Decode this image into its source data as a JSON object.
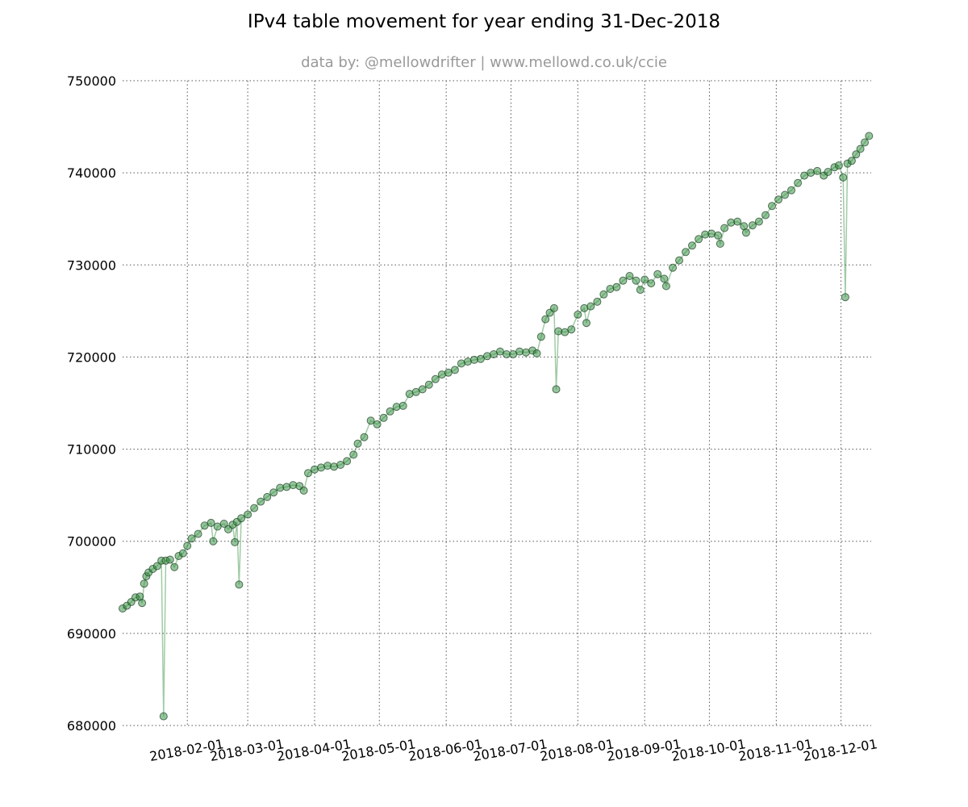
{
  "chart_data": {
    "type": "scatter",
    "title": "IPv4 table movement for year ending 31-Dec-2018",
    "subtitle": "data by: @mellowdrifter | www.mellowd.co.uk/ccie",
    "xlabel": "",
    "ylabel": "",
    "xlim": [
      "2018-01-02",
      "2018-12-15"
    ],
    "ylim": [
      680000,
      750000
    ],
    "x_ticks": [
      "2018-02-01",
      "2018-03-01",
      "2018-04-01",
      "2018-05-01",
      "2018-06-01",
      "2018-07-01",
      "2018-08-01",
      "2018-09-01",
      "2018-10-01",
      "2018-11-01",
      "2018-12-01"
    ],
    "y_ticks": [
      680000,
      690000,
      700000,
      710000,
      720000,
      730000,
      740000,
      750000
    ],
    "y_tick_labels": [
      "680000",
      "690000",
      "700000",
      "710000",
      "720000",
      "730000",
      "740000",
      "750000"
    ],
    "grid": true,
    "marker_color": "#2e8b3a",
    "marker_edge_color": "#1a3d22",
    "line_color": "#2e8b3a",
    "series": [
      {
        "points": [
          [
            "2018-01-02",
            692700
          ],
          [
            "2018-01-04",
            693000
          ],
          [
            "2018-01-06",
            693400
          ],
          [
            "2018-01-08",
            693900
          ],
          [
            "2018-01-10",
            694000
          ],
          [
            "2018-01-11",
            693300
          ],
          [
            "2018-01-12",
            695400
          ],
          [
            "2018-01-13",
            696200
          ],
          [
            "2018-01-14",
            696600
          ],
          [
            "2018-01-16",
            697000
          ],
          [
            "2018-01-18",
            697300
          ],
          [
            "2018-01-20",
            697900
          ],
          [
            "2018-01-21",
            681000
          ],
          [
            "2018-01-22",
            697900
          ],
          [
            "2018-01-24",
            698000
          ],
          [
            "2018-01-26",
            697200
          ],
          [
            "2018-01-28",
            698400
          ],
          [
            "2018-01-30",
            698700
          ],
          [
            "2018-02-01",
            699500
          ],
          [
            "2018-02-03",
            700300
          ],
          [
            "2018-02-06",
            700800
          ],
          [
            "2018-02-09",
            701700
          ],
          [
            "2018-02-12",
            702000
          ],
          [
            "2018-02-13",
            700000
          ],
          [
            "2018-02-15",
            701600
          ],
          [
            "2018-02-18",
            701900
          ],
          [
            "2018-02-20",
            701300
          ],
          [
            "2018-02-22",
            701800
          ],
          [
            "2018-02-23",
            699900
          ],
          [
            "2018-02-24",
            702100
          ],
          [
            "2018-02-25",
            695300
          ],
          [
            "2018-02-26",
            702500
          ],
          [
            "2018-03-01",
            702900
          ],
          [
            "2018-03-04",
            703600
          ],
          [
            "2018-03-07",
            704300
          ],
          [
            "2018-03-10",
            704800
          ],
          [
            "2018-03-13",
            705300
          ],
          [
            "2018-03-16",
            705800
          ],
          [
            "2018-03-19",
            705900
          ],
          [
            "2018-03-22",
            706100
          ],
          [
            "2018-03-25",
            706000
          ],
          [
            "2018-03-27",
            705500
          ],
          [
            "2018-03-29",
            707400
          ],
          [
            "2018-04-01",
            707800
          ],
          [
            "2018-04-04",
            708000
          ],
          [
            "2018-04-07",
            708200
          ],
          [
            "2018-04-10",
            708100
          ],
          [
            "2018-04-13",
            708300
          ],
          [
            "2018-04-16",
            708700
          ],
          [
            "2018-04-19",
            709400
          ],
          [
            "2018-04-21",
            710600
          ],
          [
            "2018-04-24",
            711300
          ],
          [
            "2018-04-27",
            713100
          ],
          [
            "2018-04-30",
            712700
          ],
          [
            "2018-05-03",
            713400
          ],
          [
            "2018-05-06",
            714100
          ],
          [
            "2018-05-09",
            714600
          ],
          [
            "2018-05-12",
            714700
          ],
          [
            "2018-05-15",
            716000
          ],
          [
            "2018-05-18",
            716200
          ],
          [
            "2018-05-21",
            716500
          ],
          [
            "2018-05-24",
            717000
          ],
          [
            "2018-05-27",
            717600
          ],
          [
            "2018-05-30",
            718100
          ],
          [
            "2018-06-02",
            718300
          ],
          [
            "2018-06-05",
            718600
          ],
          [
            "2018-06-08",
            719300
          ],
          [
            "2018-06-11",
            719500
          ],
          [
            "2018-06-14",
            719700
          ],
          [
            "2018-06-17",
            719800
          ],
          [
            "2018-06-20",
            720100
          ],
          [
            "2018-06-23",
            720300
          ],
          [
            "2018-06-26",
            720600
          ],
          [
            "2018-06-29",
            720300
          ],
          [
            "2018-07-02",
            720300
          ],
          [
            "2018-07-05",
            720600
          ],
          [
            "2018-07-08",
            720500
          ],
          [
            "2018-07-11",
            720700
          ],
          [
            "2018-07-13",
            720400
          ],
          [
            "2018-07-15",
            722200
          ],
          [
            "2018-07-17",
            724100
          ],
          [
            "2018-07-19",
            724800
          ],
          [
            "2018-07-21",
            725300
          ],
          [
            "2018-07-22",
            716500
          ],
          [
            "2018-07-23",
            722800
          ],
          [
            "2018-07-26",
            722700
          ],
          [
            "2018-07-29",
            723000
          ],
          [
            "2018-08-01",
            724600
          ],
          [
            "2018-08-04",
            725300
          ],
          [
            "2018-08-05",
            723700
          ],
          [
            "2018-08-07",
            725500
          ],
          [
            "2018-08-10",
            726000
          ],
          [
            "2018-08-13",
            726800
          ],
          [
            "2018-08-16",
            727400
          ],
          [
            "2018-08-19",
            727600
          ],
          [
            "2018-08-22",
            728300
          ],
          [
            "2018-08-25",
            728800
          ],
          [
            "2018-08-28",
            728300
          ],
          [
            "2018-08-30",
            727300
          ],
          [
            "2018-09-01",
            728400
          ],
          [
            "2018-09-04",
            728000
          ],
          [
            "2018-09-07",
            729000
          ],
          [
            "2018-09-10",
            728500
          ],
          [
            "2018-09-11",
            727700
          ],
          [
            "2018-09-14",
            729700
          ],
          [
            "2018-09-17",
            730500
          ],
          [
            "2018-09-20",
            731400
          ],
          [
            "2018-09-23",
            732100
          ],
          [
            "2018-09-26",
            732800
          ],
          [
            "2018-09-29",
            733300
          ],
          [
            "2018-10-02",
            733400
          ],
          [
            "2018-10-05",
            733200
          ],
          [
            "2018-10-06",
            732300
          ],
          [
            "2018-10-08",
            734000
          ],
          [
            "2018-10-11",
            734600
          ],
          [
            "2018-10-14",
            734700
          ],
          [
            "2018-10-17",
            734200
          ],
          [
            "2018-10-18",
            733500
          ],
          [
            "2018-10-21",
            734300
          ],
          [
            "2018-10-24",
            734700
          ],
          [
            "2018-10-27",
            735400
          ],
          [
            "2018-10-30",
            736400
          ],
          [
            "2018-11-02",
            737100
          ],
          [
            "2018-11-05",
            737600
          ],
          [
            "2018-11-08",
            738100
          ],
          [
            "2018-11-11",
            738900
          ],
          [
            "2018-11-14",
            739700
          ],
          [
            "2018-11-17",
            740000
          ],
          [
            "2018-11-20",
            740200
          ],
          [
            "2018-11-23",
            739700
          ],
          [
            "2018-11-25",
            740100
          ],
          [
            "2018-11-28",
            740600
          ],
          [
            "2018-11-30",
            740800
          ],
          [
            "2018-12-02",
            739500
          ],
          [
            "2018-12-03",
            726500
          ],
          [
            "2018-12-04",
            741000
          ],
          [
            "2018-12-06",
            741300
          ],
          [
            "2018-12-08",
            742000
          ],
          [
            "2018-12-10",
            742600
          ],
          [
            "2018-12-12",
            743300
          ],
          [
            "2018-12-14",
            744000
          ]
        ]
      }
    ]
  }
}
